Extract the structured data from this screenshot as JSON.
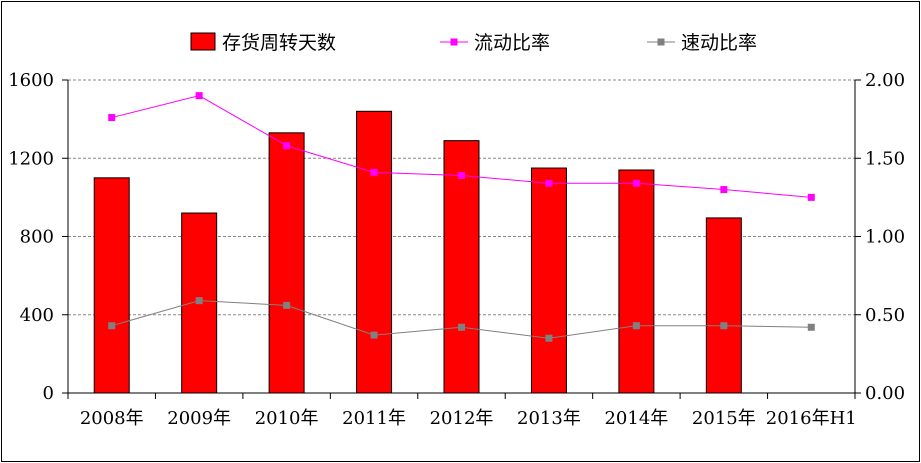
{
  "chart_data": {
    "type": "bar",
    "title": "",
    "categories": [
      "2008年",
      "2009年",
      "2010年",
      "2011年",
      "2012年",
      "2013年",
      "2014年",
      "2015年",
      "2016年H1"
    ],
    "series": [
      {
        "name": "存货周转天数",
        "type": "bar",
        "axis": "left",
        "color": "#FF0000",
        "values": [
          1100,
          920,
          1330,
          1440,
          1290,
          1150,
          1140,
          895,
          null
        ]
      },
      {
        "name": "流动比率",
        "type": "line",
        "axis": "right",
        "color": "#FF00FF",
        "values": [
          1.76,
          1.9,
          1.58,
          1.41,
          1.39,
          1.34,
          1.34,
          1.3,
          1.25
        ]
      },
      {
        "name": "速动比率",
        "type": "line",
        "axis": "right",
        "color": "#808080",
        "values": [
          0.43,
          0.59,
          0.56,
          0.37,
          0.42,
          0.35,
          0.43,
          0.43,
          0.42
        ]
      }
    ],
    "ylim": [
      0,
      1600
    ],
    "yticks": [
      "0",
      "400",
      "800",
      "1200",
      "1600"
    ],
    "y2lim": [
      0,
      2.0
    ],
    "y2ticks": [
      "0.00",
      "0.50",
      "1.00",
      "1.50",
      "2.00"
    ],
    "grid": true,
    "legend": "top"
  }
}
